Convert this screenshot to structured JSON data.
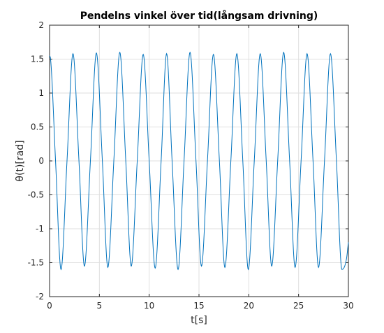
{
  "chart_data": {
    "type": "line",
    "title": "Pendelns vinkel över tid(långsam drivning)",
    "xlabel": "t[s]",
    "ylabel": "θ(t)[rad]",
    "xlim": [
      0,
      30
    ],
    "ylim": [
      -2,
      2
    ],
    "xticks": [
      "0",
      "5",
      "10",
      "15",
      "20",
      "25",
      "30"
    ],
    "yticks": [
      "2",
      "1.5",
      "1",
      "0.5",
      "0",
      "-0.5",
      "-1",
      "-1.5",
      "-2"
    ],
    "grid": true,
    "series": [
      {
        "color": "#0072bd",
        "x": [
          0,
          0.1,
          0.6,
          1.15,
          1.75,
          2.35,
          2.95,
          3.5,
          4.1,
          4.7,
          5.3,
          5.85,
          6.45,
          7.05,
          7.65,
          8.2,
          8.8,
          9.4,
          10.0,
          10.6,
          11.2,
          11.75,
          12.3,
          12.9,
          13.5,
          14.1,
          14.7,
          15.25,
          15.85,
          16.45,
          17.05,
          17.6,
          18.2,
          18.8,
          19.4,
          19.95,
          20.55,
          21.15,
          21.75,
          22.3,
          22.9,
          23.5,
          24.1,
          24.65,
          25.25,
          25.85,
          26.45,
          27.0,
          27.6,
          28.2,
          28.8,
          29.35,
          29.8,
          30.0
        ],
        "y": [
          1.55,
          1.5,
          0,
          -1.6,
          0,
          1.58,
          0,
          -1.55,
          0,
          1.59,
          0,
          -1.57,
          0,
          1.6,
          0,
          -1.55,
          0,
          1.57,
          0,
          -1.58,
          0,
          1.58,
          0,
          -1.6,
          0,
          1.6,
          0,
          -1.55,
          0,
          1.57,
          0,
          -1.57,
          0,
          1.58,
          0,
          -1.6,
          0,
          1.58,
          0,
          -1.55,
          0,
          1.6,
          0,
          -1.57,
          0,
          1.58,
          0,
          -1.57,
          0,
          1.58,
          0,
          -1.6,
          -1.45,
          -1.2
        ]
      }
    ]
  }
}
